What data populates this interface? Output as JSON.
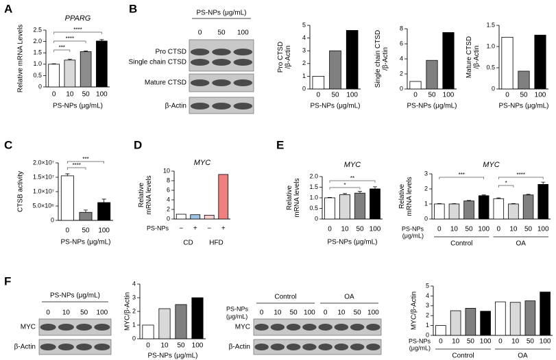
{
  "panel_labels": [
    "A",
    "B",
    "C",
    "D",
    "E",
    "F"
  ],
  "blots": [
    {
      "header": "PS-NPs (μg/mL)",
      "lanes": [
        "0",
        "50",
        "100"
      ],
      "rows": [
        "Pro CTSD",
        "Single chain CTSD",
        "Mature CTSD",
        "β-Actin"
      ]
    },
    {
      "header": "PS-NPs (μg/mL)",
      "lanes": [
        "0",
        "10",
        "50",
        "100"
      ],
      "rows": [
        "MYC",
        "β-Actin"
      ]
    },
    {
      "groups": [
        "Control",
        "OA"
      ],
      "lane_label": [
        "PS-NPs",
        "(μg/mL)"
      ],
      "lanes": [
        "0",
        "10",
        "50",
        "100",
        "0",
        "10",
        "50",
        "100"
      ],
      "rows": [
        "MYC",
        "β-Actin"
      ]
    }
  ],
  "chart_data": [
    {
      "type": "bar",
      "title": "PPARG",
      "ylabel": [
        "Relative mRNA Levels"
      ],
      "xlabel": "PS-NPs (μg/mL)",
      "categories": [
        "0",
        "10",
        "50",
        "100"
      ],
      "values": [
        1.0,
        1.18,
        1.55,
        2.02
      ],
      "errors": [
        0.02,
        0.04,
        0.03,
        0.06
      ],
      "colors": [
        "#ffffff",
        "#d9d9d9",
        "#8c8c8c",
        "#000000"
      ],
      "ylim": [
        0,
        2.5
      ],
      "yticks": [
        0,
        0.5,
        {
          "value": 1,
          "label": "1.0"
        },
        1.5,
        {
          "value": 2,
          "label": "2.0"
        },
        2.5
      ],
      "significance": [
        {
          "label": "****",
          "from": 0,
          "to": 3
        },
        {
          "label": "****",
          "from": 0,
          "to": 2
        },
        {
          "label": "***",
          "from": 0,
          "to": 1
        }
      ]
    },
    {
      "type": "bar",
      "ylabel": [
        "Pro CTSD",
        "/β-Actin"
      ],
      "xlabel": "PS-NPs (μg/mL)",
      "categories": [
        "0",
        "50",
        "100"
      ],
      "values": [
        1,
        3,
        4.6
      ],
      "colors": [
        "#ffffff",
        "#808080",
        "#000000"
      ],
      "ylim": [
        0,
        5
      ],
      "yticks": [
        0,
        1,
        2,
        3,
        4,
        5
      ]
    },
    {
      "type": "bar",
      "ylabel": [
        "Single chain CTSD",
        "/β-Actin"
      ],
      "xlabel": "PS-NPs (μg/mL)",
      "categories": [
        "0",
        "50",
        "100"
      ],
      "values": [
        1,
        3.8,
        7.5
      ],
      "colors": [
        "#ffffff",
        "#808080",
        "#000000"
      ],
      "ylim": [
        0,
        8
      ],
      "yticks": [
        0,
        2,
        4,
        6,
        8
      ]
    },
    {
      "type": "bar",
      "ylabel": [
        "Mature CTSD",
        "/β-Actin"
      ],
      "xlabel": "PS-NPs (μg/mL)",
      "categories": [
        "0",
        "50",
        "100"
      ],
      "values": [
        1.22,
        0.42,
        1.27
      ],
      "colors": [
        "#ffffff",
        "#808080",
        "#000000"
      ],
      "ylim": [
        0,
        1.5
      ],
      "yticks": [
        0,
        0.5,
        {
          "value": 1,
          "label": "1.0"
        },
        1.5
      ]
    },
    {
      "type": "bar",
      "ylabel": [
        "CTSB activity"
      ],
      "xlabel": "PS-NPs (μg/mL)",
      "categories": [
        "0",
        "50",
        "100"
      ],
      "values": [
        15500000,
        2800000,
        6200000
      ],
      "errors": [
        700000,
        800000,
        1200000
      ],
      "colors": [
        "#ffffff",
        "#808080",
        "#000000"
      ],
      "ylim": [
        0,
        20000000
      ],
      "yticks": [
        0,
        {
          "value": 5000000,
          "label": "5.0×10⁶"
        },
        {
          "value": 10000000,
          "label": "1.0×10⁷"
        },
        {
          "value": 15000000,
          "label": "1.5×10⁷"
        },
        {
          "value": 20000000,
          "label": "2.0×10⁷"
        }
      ],
      "significance": [
        {
          "label": "***",
          "from": 0,
          "to": 2
        },
        {
          "label": "****",
          "from": 0,
          "to": 1
        }
      ]
    },
    {
      "type": "bar",
      "title": "MYC",
      "ylabel": [
        "Relative",
        "mRNA levels"
      ],
      "x_row_label": [
        "PS-NPs"
      ],
      "categories": [
        "−",
        "+",
        "−",
        "+"
      ],
      "groups": [
        "CD",
        "HFD"
      ],
      "values": [
        1.0,
        0.9,
        0.8,
        9.3
      ],
      "colors": [
        "#ffffff",
        "#9dc3e6",
        "#f8d0d0",
        "#f08080"
      ],
      "ylim": [
        0,
        10
      ],
      "yticks": [
        0,
        2,
        4,
        6,
        8,
        10
      ]
    },
    {
      "type": "bar",
      "title": "MYC",
      "ylabel": [
        "Relative",
        "mRNA levels"
      ],
      "xlabel": "PS-NPs (μg/mL)",
      "categories": [
        "0",
        "10",
        "50",
        "100"
      ],
      "values": [
        1.0,
        1.15,
        1.22,
        1.42
      ],
      "errors": [
        0.02,
        0.05,
        0.08,
        0.1
      ],
      "colors": [
        "#ffffff",
        "#d9d9d9",
        "#808080",
        "#000000"
      ],
      "ylim": [
        0,
        2
      ],
      "yticks": [
        0,
        0.5,
        {
          "value": 1,
          "label": "1.0"
        },
        1.5,
        {
          "value": 2,
          "label": "2.0"
        }
      ],
      "significance": [
        {
          "label": "**",
          "from": 0,
          "to": 3
        },
        {
          "label": "*",
          "from": 0,
          "to": 2
        }
      ]
    },
    {
      "type": "bar",
      "title": "MYC",
      "ylabel": [
        "Relative",
        "mRNA levels"
      ],
      "x_row_label": [
        "PS-NPs",
        "(μg/mL)"
      ],
      "categories": [
        "0",
        "10",
        "50",
        "100",
        "0",
        "10",
        "50",
        "100"
      ],
      "groups": [
        "Control",
        "OA"
      ],
      "values": [
        1.0,
        1.0,
        1.2,
        1.55,
        1.35,
        1.0,
        1.6,
        2.3
      ],
      "errors": [
        0.03,
        0.02,
        0.03,
        0.05,
        0.05,
        0.03,
        0.04,
        0.15
      ],
      "colors": [
        "#ffffff",
        "#d9d9d9",
        "#808080",
        "#000000",
        "#ffffff",
        "#d9d9d9",
        "#808080",
        "#000000"
      ],
      "ylim": [
        0,
        3
      ],
      "yticks": [
        0,
        1,
        2,
        3
      ],
      "significance": [
        {
          "label": "***",
          "from": 0,
          "to": 3
        },
        {
          "label": "****",
          "from": 4,
          "to": 7
        },
        {
          "label": "*",
          "from": 4,
          "to": 5
        }
      ]
    },
    {
      "type": "bar",
      "ylabel": [
        "MYC/β-Actin"
      ],
      "xlabel": "PS-NPs (μg/mL)",
      "categories": [
        "0",
        "10",
        "50",
        "100"
      ],
      "values": [
        1.0,
        2.2,
        2.5,
        3.0
      ],
      "colors": [
        "#ffffff",
        "#d9d9d9",
        "#808080",
        "#000000"
      ],
      "ylim": [
        0,
        4
      ],
      "yticks": [
        0,
        1,
        2,
        3,
        4
      ]
    },
    {
      "type": "bar",
      "ylabel": [
        "MYC/β-Actin"
      ],
      "x_row_label": [
        "PS-NPs",
        "(μg/mL)"
      ],
      "categories": [
        "0",
        "10",
        "50",
        "100",
        "0",
        "10",
        "50",
        "100"
      ],
      "groups": [
        "Control",
        "OA"
      ],
      "values": [
        1.0,
        2.5,
        2.75,
        2.45,
        3.4,
        3.35,
        3.5,
        4.4
      ],
      "colors": [
        "#ffffff",
        "#d9d9d9",
        "#808080",
        "#000000",
        "#ffffff",
        "#d9d9d9",
        "#808080",
        "#000000"
      ],
      "ylim": [
        0,
        5
      ],
      "yticks": [
        0,
        1,
        2,
        3,
        4,
        5
      ]
    }
  ]
}
